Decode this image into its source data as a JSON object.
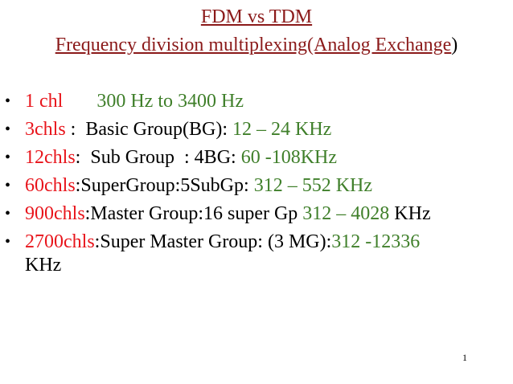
{
  "title": {
    "line1": "FDM vs TDM",
    "line2_main": "Frequency division multiplexing(Analog Exchange",
    "line2_close": ")"
  },
  "bullets": [
    {
      "chl": "1 chl",
      "sep": "",
      "desc": "",
      "range": "300 Hz to 3400 Hz",
      "unit": ""
    },
    {
      "chl": "3chls",
      "sep": " :",
      "desc": "  Basic Group(BG): ",
      "range": "12 – 24 KHz",
      "unit": ""
    },
    {
      "chl": "12chls",
      "sep": ":",
      "desc": "  Sub Group  : 4BG: ",
      "range": "60 -108KHz",
      "unit": ""
    },
    {
      "chl": "60chls",
      "sep": ":",
      "desc": "SuperGroup:5SubGp: ",
      "range": "312 – 552 KHz",
      "unit": ""
    },
    {
      "chl": "900chls",
      "sep": ":",
      "desc": "Master Group:16 super Gp ",
      "range": "312 – 4028",
      "unit": " KHz"
    },
    {
      "chl": "2700chls",
      "sep": ":",
      "desc": "Super Master Group: (3 MG):",
      "range": "312 -12336",
      "unit": "KHz"
    }
  ],
  "bullet_symbol": "•",
  "page_number": "1",
  "colors": {
    "title": "#8B1A1A",
    "chl": "#E8141B",
    "range": "#3F7F2A",
    "text": "#000000"
  }
}
